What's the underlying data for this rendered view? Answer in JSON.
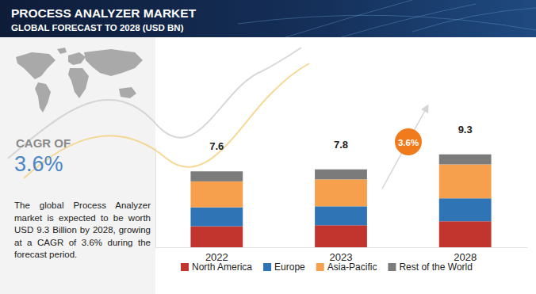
{
  "chart_data": {
    "type": "bar",
    "stacked": true,
    "title": "PROCESS ANALYZER MARKET",
    "subtitle": "GLOBAL FORECAST TO 2028 (USD BN)",
    "categories": [
      "2022",
      "2023",
      "2028"
    ],
    "series": [
      {
        "name": "North America",
        "color": "#c2352f",
        "values": [
          2.1,
          2.2,
          2.6
        ]
      },
      {
        "name": "Europe",
        "color": "#2f74b5",
        "values": [
          1.9,
          1.9,
          2.3
        ]
      },
      {
        "name": "Asia-Pacific",
        "color": "#f6a04d",
        "values": [
          2.6,
          2.7,
          3.4
        ]
      },
      {
        "name": "Rest of the World",
        "color": "#7b7b7b",
        "values": [
          1.0,
          1.0,
          1.0
        ]
      }
    ],
    "totals": [
      7.6,
      7.8,
      9.3
    ],
    "annotation": "3.6%",
    "ylim": [
      0,
      10
    ],
    "tick_labels": "x",
    "legend": "bottom"
  },
  "side_panel": {
    "cagr_label": "CAGR OF",
    "cagr_value": "3.6%",
    "description": "The global Process Analyzer market is expected to be worth USD 9.3 Billion by 2028, growing at a CAGR of 3.6% during the forecast period."
  }
}
